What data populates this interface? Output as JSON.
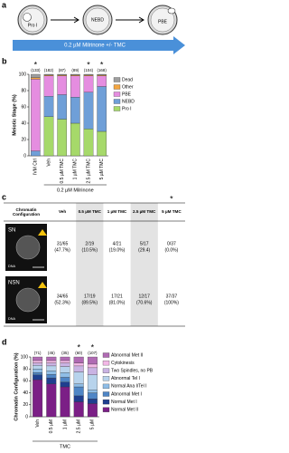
{
  "panel_labels": [
    "a",
    "b",
    "c",
    "d"
  ],
  "schematic": {
    "cells": [
      "Pro I",
      "NEBD",
      "PBE"
    ],
    "arrow": "0.2 µM Milrinone +/- TMC"
  },
  "chart_data": [
    {
      "type": "bar",
      "stacked": true,
      "ylabel": "Meiotic Stage (%)",
      "categories": [
        "IVM Ctrl",
        "Veh",
        "0.5 µM TMC",
        "1 µM TMC",
        "2.5 µM TMC",
        "5 µM TMC"
      ],
      "n_labels": [
        "(133)",
        "(182)",
        "(87)",
        "(89)",
        "(104)",
        "(168)"
      ],
      "significance": [
        "*",
        null,
        null,
        null,
        "*",
        "*"
      ],
      "bracket_label": "0.2 µM Milrinone",
      "ylim": [
        0,
        100
      ],
      "yticks": [
        0,
        20,
        40,
        60,
        80,
        100
      ],
      "series": [
        {
          "name": "Dead",
          "color": "#9e9e9e",
          "values": [
            4,
            1,
            1,
            1,
            1,
            1
          ]
        },
        {
          "name": "Other",
          "color": "#f4a640",
          "values": [
            2,
            1,
            1,
            1,
            1,
            1
          ]
        },
        {
          "name": "PBE",
          "color": "#e58de0",
          "values": [
            88,
            25,
            23,
            26,
            20,
            13
          ]
        },
        {
          "name": "NEBD",
          "color": "#6f9fd8",
          "values": [
            6,
            25,
            30,
            32,
            45,
            55
          ]
        },
        {
          "name": "Pro I",
          "color": "#a6d96a",
          "values": [
            0,
            48,
            45,
            40,
            33,
            30
          ]
        }
      ]
    },
    {
      "type": "bar",
      "stacked": true,
      "ylabel": "Chromatin Configuration (%)",
      "categories": [
        "Veh",
        "0.5 µM",
        "1 µM",
        "2.5 µM",
        "5 µM"
      ],
      "n_labels": [
        "(71)",
        "(45)",
        "(35)",
        "(60)",
        "(107)"
      ],
      "significance": [
        null,
        null,
        null,
        "*",
        "*"
      ],
      "bracket_label": "TMC",
      "ylim": [
        0,
        100
      ],
      "yticks": [
        0,
        20,
        40,
        60,
        80,
        100
      ],
      "series": [
        {
          "name": "Abnormal Met II",
          "color": "#b06ab3",
          "values": [
            6,
            6,
            6,
            10,
            12
          ]
        },
        {
          "name": "Cytokinesis",
          "color": "#f2b8e6",
          "values": [
            4,
            4,
            4,
            5,
            6
          ]
        },
        {
          "name": "Two Spindles, no PB",
          "color": "#c9b3e3",
          "values": [
            4,
            5,
            6,
            10,
            12
          ]
        },
        {
          "name": "Abnormal Tel I",
          "color": "#b7d3ec",
          "values": [
            6,
            8,
            10,
            20,
            25
          ]
        },
        {
          "name": "Normal Ana I/Tel I",
          "color": "#8fbde6",
          "values": [
            6,
            6,
            8,
            5,
            5
          ]
        },
        {
          "name": "Abnormal Met I",
          "color": "#4f86c6",
          "values": [
            4,
            6,
            8,
            15,
            10
          ]
        },
        {
          "name": "Normal Met I",
          "color": "#1f3f8f",
          "values": [
            8,
            10,
            8,
            10,
            8
          ]
        },
        {
          "name": "Normal Met II",
          "color": "#7b1f86",
          "values": [
            62,
            55,
            50,
            25,
            22
          ]
        }
      ]
    }
  ],
  "table": {
    "significance": [
      null,
      null,
      null,
      null,
      "*"
    ],
    "header": [
      "Chromatin Configuration",
      "Veh",
      "0.5 µM TMC",
      "1 µM TMC",
      "2.5 µM TMC",
      "5 µM TMC"
    ],
    "image_label": "DNA",
    "rows": [
      {
        "label": "SN",
        "cells": [
          {
            "count": "31/65",
            "percent": "(47.7%)"
          },
          {
            "count": "2/19",
            "percent": "(10.5%)"
          },
          {
            "count": "4/21",
            "percent": "(19.0%)"
          },
          {
            "count": "5/17",
            "percent": "(29.4)"
          },
          {
            "count": "0/37",
            "percent": "(0.0%)"
          }
        ]
      },
      {
        "label": "NSN",
        "cells": [
          {
            "count": "34/65",
            "percent": "(52.3%)"
          },
          {
            "count": "17/19",
            "percent": "(89.5%)"
          },
          {
            "count": "17/21",
            "percent": "(81.0%)"
          },
          {
            "count": "12/17",
            "percent": "(70.6%)"
          },
          {
            "count": "37/37",
            "percent": "(100%)"
          }
        ]
      }
    ]
  }
}
